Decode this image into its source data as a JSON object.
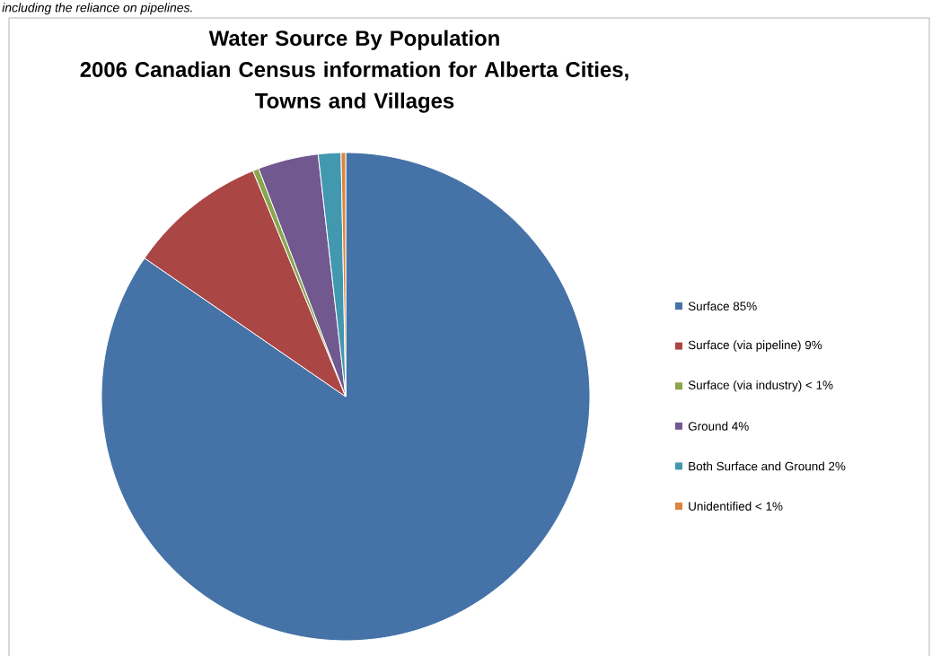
{
  "chart_data": {
    "type": "pie",
    "title": "Water Source By Population\n2006 Canadian Census information for Alberta Cities,\nTowns and Villages",
    "annotations": [
      "including the reliance on pipelines."
    ],
    "categories": [
      "Surface 85%",
      "Surface (via pipeline) 9%",
      "Surface (via industry) < 1%",
      "Ground 4%",
      "Both Surface and Ground 2%",
      "Unidentified < 1%"
    ],
    "values": [
      84.6,
      9.2,
      0.4,
      4.0,
      1.5,
      0.3
    ],
    "colors": [
      "#4572a7",
      "#aa4643",
      "#89a54e",
      "#71588f",
      "#4198af",
      "#db843d"
    ],
    "legend": "right"
  }
}
